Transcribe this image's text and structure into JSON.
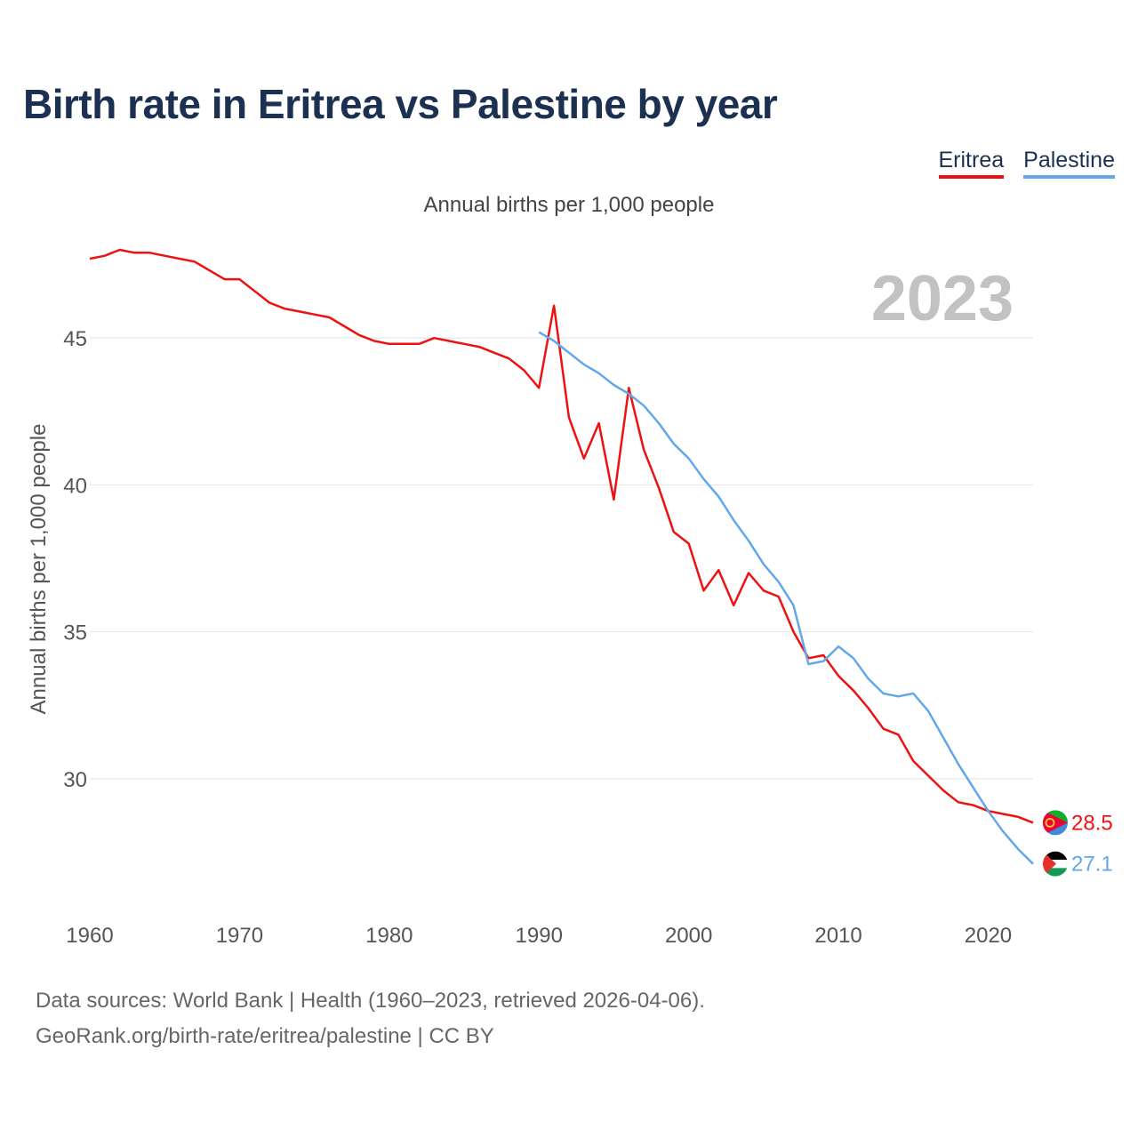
{
  "title": "Birth rate in Eritrea vs Palestine by year",
  "subtitle": "Annual births per 1,000 people",
  "legend": [
    {
      "label": "Eritrea",
      "color": "#ee1111"
    },
    {
      "label": "Palestine",
      "color": "#62a8e8"
    }
  ],
  "year_watermark": "2023",
  "footer": {
    "line1": "Data sources: World Bank | Health (1960–2023, retrieved 2026-04-06).",
    "line2": "GeoRank.org/birth-rate/eritrea/palestine | CC BY"
  },
  "chart_data": {
    "type": "line",
    "title": "Birth rate in Eritrea vs Palestine by year",
    "xlabel": "",
    "ylabel": "Annual births per 1,000 people",
    "xlim": [
      1960,
      2023
    ],
    "ylim": [
      26,
      49
    ],
    "xticks": [
      1960,
      1970,
      1980,
      1990,
      2000,
      2010,
      2020
    ],
    "yticks": [
      30,
      35,
      40,
      45
    ],
    "grid": true,
    "series": [
      {
        "name": "Eritrea",
        "color": "#ee1111",
        "end_label": "28.5",
        "x": [
          1960,
          1961,
          1962,
          1963,
          1964,
          1965,
          1966,
          1967,
          1968,
          1969,
          1970,
          1971,
          1972,
          1973,
          1974,
          1975,
          1976,
          1977,
          1978,
          1979,
          1980,
          1981,
          1982,
          1983,
          1984,
          1985,
          1986,
          1987,
          1988,
          1989,
          1990,
          1991,
          1992,
          1993,
          1994,
          1995,
          1996,
          1997,
          1998,
          1999,
          2000,
          2001,
          2002,
          2003,
          2004,
          2005,
          2006,
          2007,
          2008,
          2009,
          2010,
          2011,
          2012,
          2013,
          2014,
          2015,
          2016,
          2017,
          2018,
          2019,
          2020,
          2021,
          2022,
          2023
        ],
        "y": [
          47.7,
          47.8,
          48.0,
          47.9,
          47.9,
          47.8,
          47.7,
          47.6,
          47.3,
          47.0,
          47.0,
          46.6,
          46.2,
          46.0,
          45.9,
          45.8,
          45.7,
          45.4,
          45.1,
          44.9,
          44.8,
          44.8,
          44.8,
          45.0,
          44.9,
          44.8,
          44.7,
          44.5,
          44.3,
          43.9,
          43.3,
          46.1,
          42.3,
          40.9,
          42.1,
          39.5,
          43.3,
          41.2,
          39.9,
          38.4,
          38.0,
          36.4,
          37.1,
          35.9,
          37.0,
          36.4,
          36.2,
          35.0,
          34.1,
          34.2,
          33.5,
          33.0,
          32.4,
          31.7,
          31.5,
          30.6,
          30.1,
          29.6,
          29.2,
          29.1,
          28.9,
          28.8,
          28.7,
          28.5
        ]
      },
      {
        "name": "Palestine",
        "color": "#62a8e8",
        "end_label": "27.1",
        "x": [
          1990,
          1991,
          1992,
          1993,
          1994,
          1995,
          1996,
          1997,
          1998,
          1999,
          2000,
          2001,
          2002,
          2003,
          2004,
          2005,
          2006,
          2007,
          2008,
          2009,
          2010,
          2011,
          2012,
          2013,
          2014,
          2015,
          2016,
          2017,
          2018,
          2019,
          2020,
          2021,
          2022,
          2023
        ],
        "y": [
          45.2,
          44.9,
          44.5,
          44.1,
          43.8,
          43.4,
          43.1,
          42.7,
          42.1,
          41.4,
          40.9,
          40.2,
          39.6,
          38.8,
          38.1,
          37.3,
          36.7,
          35.9,
          33.9,
          34.0,
          34.5,
          34.1,
          33.4,
          32.9,
          32.8,
          32.9,
          32.3,
          31.4,
          30.5,
          29.7,
          28.9,
          28.2,
          27.6,
          27.1
        ]
      }
    ]
  }
}
